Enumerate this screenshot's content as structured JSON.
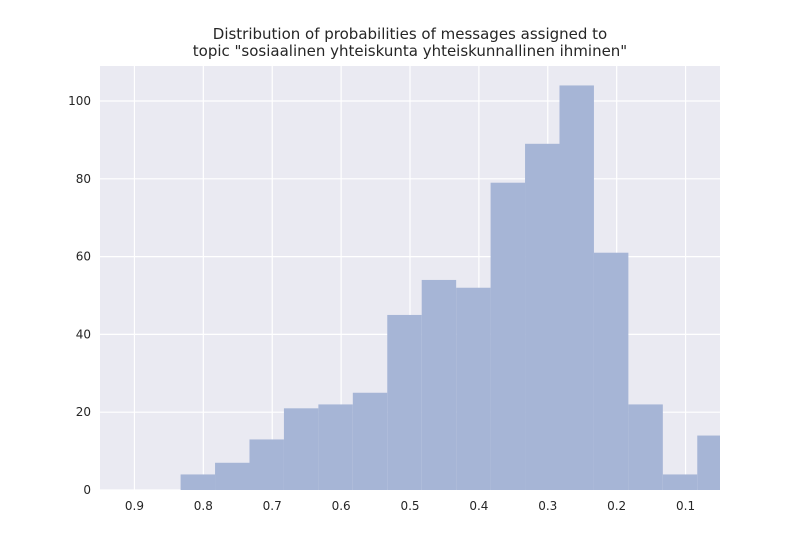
{
  "chart_data": {
    "type": "bar",
    "title_lines": [
      "Distribution of probabilities of messages assigned to",
      "topic \"sosiaalinen yhteiskunta yhteiskunnallinen ihminen\""
    ],
    "xlabel": "",
    "ylabel": "",
    "x_reversed": true,
    "xlim": [
      0.95,
      0.05
    ],
    "ylim": [
      0,
      109
    ],
    "grid": true,
    "xticks": [
      0.9,
      0.8,
      0.7,
      0.6,
      0.5,
      0.4,
      0.3,
      0.2,
      0.1
    ],
    "xtick_labels": [
      "0.9",
      "0.8",
      "0.7",
      "0.6",
      "0.5",
      "0.4",
      "0.3",
      "0.2",
      "0.1"
    ],
    "yticks": [
      0,
      20,
      40,
      60,
      80,
      100
    ],
    "ytick_labels": [
      "0",
      "20",
      "40",
      "60",
      "80",
      "100"
    ],
    "bin_edges": [
      0.833,
      0.783,
      0.733,
      0.683,
      0.633,
      0.583,
      0.533,
      0.483,
      0.433,
      0.383,
      0.333,
      0.283,
      0.233,
      0.183,
      0.133,
      0.083,
      0.033
    ],
    "values": [
      4,
      7,
      13,
      21,
      22,
      25,
      45,
      54,
      52,
      79,
      89,
      104,
      61,
      22,
      4,
      14
    ],
    "color": "#a6b5d6",
    "background": "#eaeaf2",
    "grid_color": "#ffffff"
  }
}
